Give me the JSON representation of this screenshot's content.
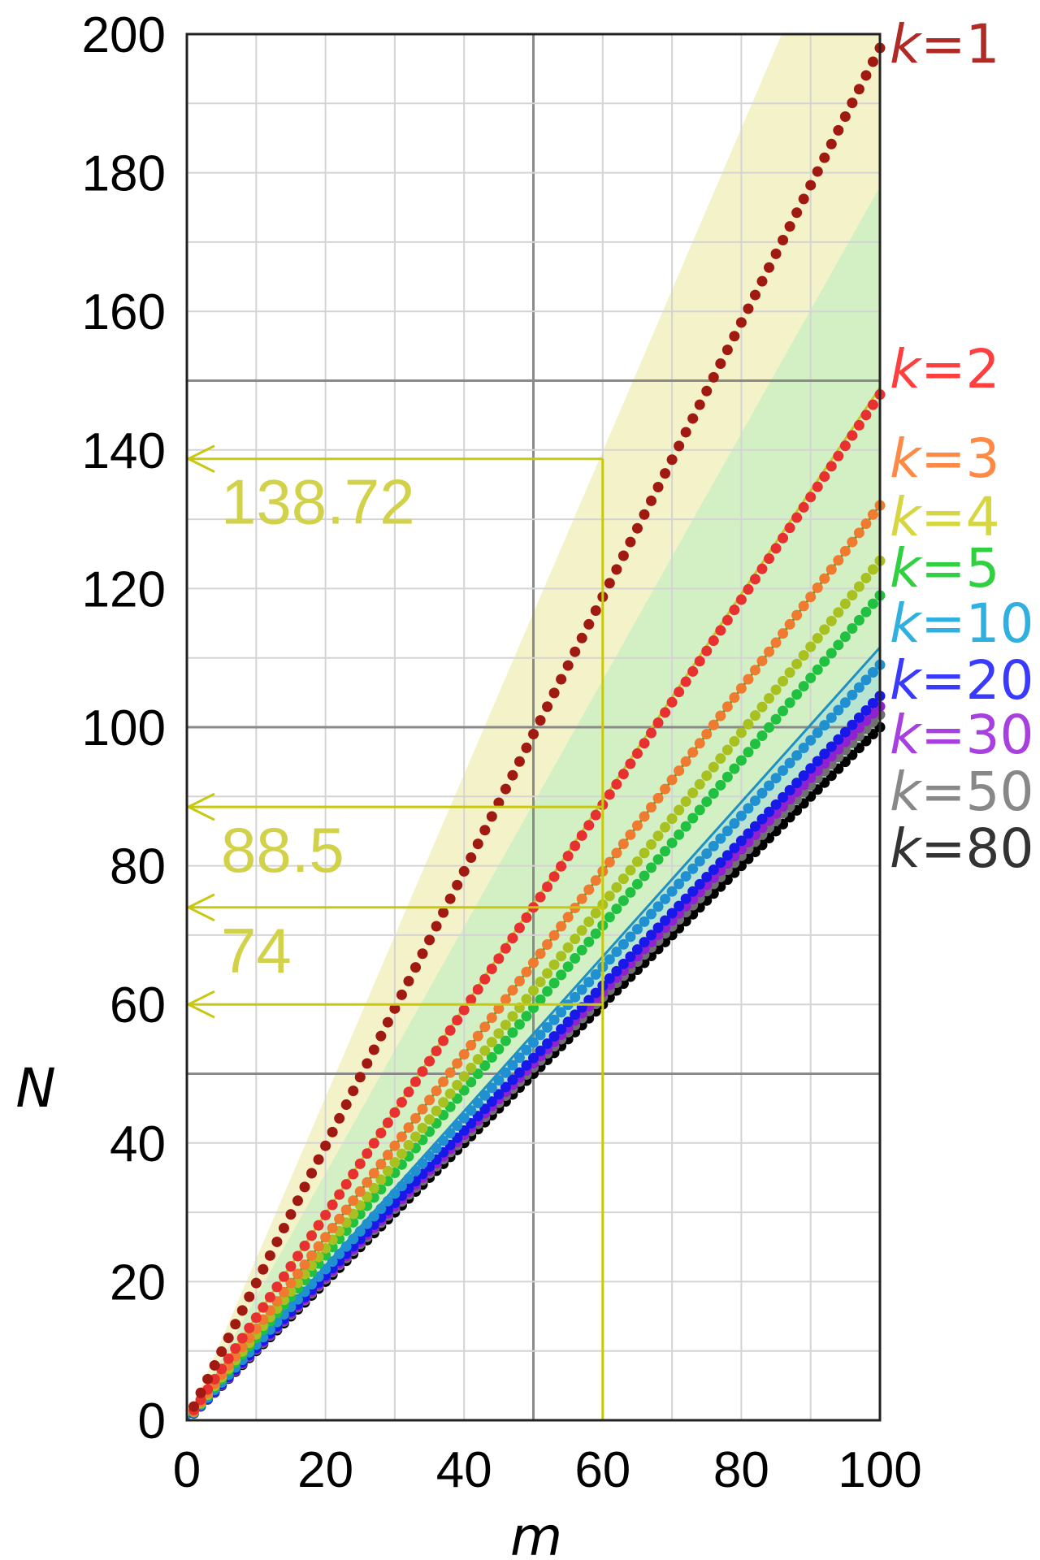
{
  "chart_data": {
    "type": "line",
    "title": "",
    "xlabel": "m",
    "ylabel": "N",
    "xlim": [
      0,
      100
    ],
    "ylim": [
      0,
      200
    ],
    "x_ticks": [
      "0",
      "20",
      "40",
      "60",
      "80",
      "100"
    ],
    "y_ticks": [
      "0",
      "20",
      "40",
      "60",
      "80",
      "100",
      "120",
      "140",
      "160",
      "180",
      "200"
    ],
    "x_ticks_num": [
      0,
      20,
      40,
      60,
      80,
      100
    ],
    "y_ticks_num": [
      0,
      20,
      40,
      60,
      80,
      100,
      120,
      140,
      160,
      180,
      200
    ],
    "grid": true,
    "legend": "right",
    "series": [
      {
        "name": "k=1",
        "k": 1,
        "slope": 1.98,
        "end": 198.0,
        "color": "#a01a12",
        "text": "1",
        "label_color": "#b02a26"
      },
      {
        "name": "k=2",
        "k": 2,
        "slope": 1.48,
        "end": 148.0,
        "color": "#e83030",
        "text": "2",
        "label_color": "#ff3e3e"
      },
      {
        "name": "k=3",
        "k": 3,
        "slope": 1.32,
        "end": 132.0,
        "color": "#f07a30",
        "text": "3",
        "label_color": "#ff8a46"
      },
      {
        "name": "k=4",
        "k": 4,
        "slope": 1.24,
        "end": 124.0,
        "color": "#a8c020",
        "text": "4",
        "label_color": "#d6d640"
      },
      {
        "name": "k=5",
        "k": 5,
        "slope": 1.19,
        "end": 119.0,
        "color": "#20c040",
        "text": "5",
        "label_color": "#30d040"
      },
      {
        "name": "k=10",
        "k": 10,
        "slope": 1.09,
        "end": 109.0,
        "color": "#2090d0",
        "text": "10",
        "label_color": "#30b0e0"
      },
      {
        "name": "k=20",
        "k": 20,
        "slope": 1.045,
        "end": 104.5,
        "color": "#1818e8",
        "text": "20",
        "label_color": "#3a3aff"
      },
      {
        "name": "k=30",
        "k": 30,
        "slope": 1.03,
        "end": 103.0,
        "color": "#9020d0",
        "text": "30",
        "label_color": "#a840e0"
      },
      {
        "name": "k=50",
        "k": 50,
        "slope": 1.018,
        "end": 101.8,
        "color": "#707070",
        "text": "50",
        "label_color": "#888888"
      },
      {
        "name": "k=80",
        "k": 80,
        "slope": 1.0,
        "end": 100.0,
        "color": "#000000",
        "text": "80",
        "label_color": "#333333"
      }
    ],
    "series_label_k": "k",
    "series_label_eq": "=",
    "reference_lines": [
      {
        "slope": 1.49,
        "color": "#c8c820"
      },
      {
        "slope": 1.32,
        "color": "#20b030"
      },
      {
        "slope": 1.115,
        "color": "#2090c0"
      }
    ],
    "bands": [
      {
        "upper_slope": 2.33,
        "lower_slope": 1.49,
        "color": "#f4f2c8"
      },
      {
        "upper_slope": 1.78,
        "lower_slope": 1.115,
        "color": "#d2f0c4"
      },
      {
        "upper_slope": 1.115,
        "lower_slope": 1.0,
        "color": "#b8e4d2"
      }
    ],
    "annotation": {
      "m": 60,
      "color": "#c8c810",
      "text_color": "#d2d24a",
      "values": [
        {
          "y": 138.72,
          "text": "138.72"
        },
        {
          "y": 88.5,
          "text": "88.5"
        },
        {
          "y": 74,
          "text": "74"
        },
        {
          "y": 60,
          "text": ""
        }
      ]
    }
  }
}
